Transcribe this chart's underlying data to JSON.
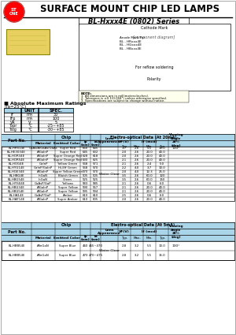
{
  "title": "SURFACE MOUNT CHIP LED LAMPS",
  "subtitle": "BL-Hxxx4E (0802) Series",
  "logo_text": "STONE",
  "bg_color": "#ffffff",
  "header_color": "#000000",
  "table1_header_bg": "#aad4e8",
  "table2_header_bg": "#aad4e8",
  "abs_max_title": "Absolute Maximum Ratings",
  "abs_max_subtitle": "(Ta=25°C)",
  "abs_max_headers": [
    "",
    "UNIT",
    "SPEC."
  ],
  "abs_max_rows": [
    [
      "IF",
      "mA",
      "30"
    ],
    [
      "IFp",
      "mA",
      "100"
    ],
    [
      "VR",
      "V",
      "5"
    ],
    [
      "Topr",
      "°C",
      "-25~+85"
    ],
    [
      "Tstg",
      "°C",
      "-30~+85"
    ]
  ],
  "table1_title": "Chip",
  "table1_col1": "Part No.",
  "table1_headers": [
    "Material",
    "Emitted Color",
    "lp\n(nm)",
    "ld\n(nm)",
    "Lens\nAppearance"
  ],
  "table1_eo_headers": [
    "Electro-optical Data (At 20mA)",
    "VF(V)",
    "If (mcd)",
    "Typ.",
    "Max.",
    "Min.",
    "Typ."
  ],
  "table1_angle_header": "Viewing\nAngle\n2θ½\n(deg)",
  "table1_rows": [
    [
      "BL-HRS14E",
      "GaAs/AlGaAs/GaAs",
      "Super Red",
      "660",
      "645",
      "1.7",
      "2.6",
      "5.5",
      "10.0",
      "130°"
    ],
    [
      "BL-HE3034E",
      "AlGaInP",
      "Super Red",
      "645",
      "632",
      "2.0",
      "2.6",
      "20.0",
      "40.0",
      ""
    ],
    [
      "BL-HOR34E",
      "AlGaInP",
      "Super Orange Red",
      "628",
      "618",
      "2.0",
      "2.6",
      "20.0",
      "40.0",
      ""
    ],
    [
      "BL-HOR54E",
      "AlGaInP",
      "Super Orange Red",
      "630",
      "625",
      "2.1",
      "2.6",
      "20.0",
      "40.0",
      ""
    ],
    [
      "BL-HOG4E",
      "GaInP",
      "Yellow Green",
      "568",
      "571",
      "2.1",
      "2.6",
      "2.4",
      "5.0",
      ""
    ],
    [
      "BL-HYG14E",
      "GaInP/GaInP",
      "Hi-Eff Green",
      "568",
      "570",
      "2.2",
      "4.0",
      "3.7",
      "10.0",
      ""
    ],
    [
      "BL-HGE34E",
      "AlGaInP",
      "Super Yellow Green",
      "570",
      "570",
      "2.0",
      "4.0",
      "12.3",
      "25.0",
      ""
    ],
    [
      "BL-HBG4E",
      "InGaN",
      "Bluish Green",
      "505",
      "505",
      "3.5",
      "2.6",
      "60.0",
      "120",
      ""
    ],
    [
      "BL-HBG54E",
      "InGaN",
      "Green",
      "525",
      "525",
      "3.5",
      "2.6",
      "60.0",
      "150",
      ""
    ],
    [
      "BL-HYS04E",
      "GaAsP/GaP",
      "Yellows",
      "583",
      "585",
      "2.1",
      "2.6",
      "0.6",
      "6.0",
      ""
    ],
    [
      "BL-HBU34E",
      "AlGaInP",
      "Super Yellow",
      "590",
      "567",
      "2.1",
      "2.6",
      "20.0",
      "40.0",
      ""
    ],
    [
      "BL-HBU54E",
      "AlGaInP",
      "Super Yellow",
      "595",
      "594",
      "2.1",
      "2.6",
      "20.0",
      "40.0",
      ""
    ],
    [
      "BL-HA14E",
      "GaAsP/GaP",
      "Amber",
      "610",
      "610",
      "2.5",
      "2.6",
      "0.6",
      "6.0",
      ""
    ],
    [
      "BL-HAF14E",
      "AlGaInP",
      "Super Amber",
      "610",
      "605",
      "2.0",
      "2.6",
      "20.0",
      "40.0",
      ""
    ]
  ],
  "table2_rows": [
    [
      "BL-HBB54E",
      "AlInGaN",
      "Super Blue",
      "460",
      "465~470",
      "2.8",
      "3.2",
      "5.5",
      "10.0",
      "130°"
    ],
    [
      "BL-HBB54E",
      "AlInGaN",
      "Super Blue",
      "470",
      "470~475",
      "2.8",
      "3.2",
      "5.5",
      "15.0",
      ""
    ]
  ]
}
